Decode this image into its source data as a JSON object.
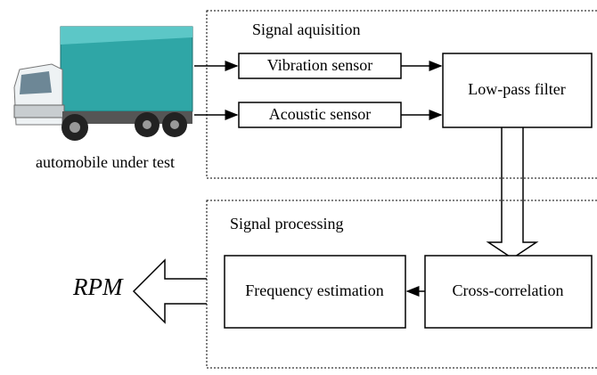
{
  "acquisition": {
    "title": "Signal aquisition",
    "vibration": "Vibration  sensor",
    "acoustic": "Acoustic  sensor",
    "filter": "Low-pass filter"
  },
  "vehicle": {
    "label": "automobile under test"
  },
  "processing": {
    "title": "Signal processing",
    "frequency": "Frequency estimation",
    "correlation": "Cross-correlation"
  },
  "output": {
    "label": "RPM"
  }
}
